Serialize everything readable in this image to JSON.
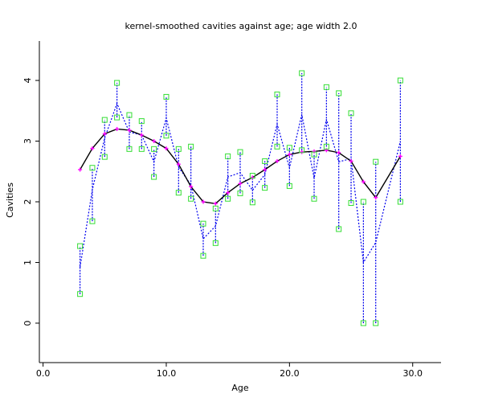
{
  "chart_data": {
    "type": "scatter",
    "title": "kernel-smoothed cavities against age; age width 2.0",
    "xlabel": "Age",
    "ylabel": "Cavities",
    "xlim": [
      -0.3,
      32.3
    ],
    "ylim": [
      -0.65,
      4.65
    ],
    "xticks": [
      {
        "value": 0,
        "label": "0.0"
      },
      {
        "value": 10,
        "label": "10.0"
      },
      {
        "value": 20,
        "label": "20.0"
      },
      {
        "value": 30,
        "label": "30.0"
      }
    ],
    "yticks": [
      {
        "value": 0,
        "label": "0"
      },
      {
        "value": 1,
        "label": "1"
      },
      {
        "value": 2,
        "label": "2"
      },
      {
        "value": 3,
        "label": "3"
      },
      {
        "value": 4,
        "label": "4"
      }
    ],
    "grid": false,
    "colors": {
      "points": "#33dd33",
      "smooth_line": "#000000",
      "smooth_points": "#ff00ff",
      "local_line": "#0000ee"
    },
    "series": [
      {
        "role": "observations",
        "points": [
          [
            3,
            0.48
          ],
          [
            3,
            1.27
          ],
          [
            4,
            1.68
          ],
          [
            4,
            2.56
          ],
          [
            5,
            2.74
          ],
          [
            5,
            3.35
          ],
          [
            6,
            3.39
          ],
          [
            6,
            3.96
          ],
          [
            7,
            2.87
          ],
          [
            7,
            3.43
          ],
          [
            8,
            2.87
          ],
          [
            8,
            3.33
          ],
          [
            9,
            2.41
          ],
          [
            9,
            2.87
          ],
          [
            10,
            3.09
          ],
          [
            10,
            3.73
          ],
          [
            11,
            2.15
          ],
          [
            11,
            2.87
          ],
          [
            12,
            2.05
          ],
          [
            12,
            2.91
          ],
          [
            13,
            1.11
          ],
          [
            13,
            1.64
          ],
          [
            14,
            1.32
          ],
          [
            14,
            1.89
          ],
          [
            15,
            2.05
          ],
          [
            15,
            2.75
          ],
          [
            16,
            2.14
          ],
          [
            16,
            2.82
          ],
          [
            17,
            1.99
          ],
          [
            17,
            2.43
          ],
          [
            18,
            2.23
          ],
          [
            18,
            2.67
          ],
          [
            19,
            2.91
          ],
          [
            19,
            3.77
          ],
          [
            20,
            2.26
          ],
          [
            20,
            2.89
          ],
          [
            21,
            2.85
          ],
          [
            21,
            4.12
          ],
          [
            22,
            2.05
          ],
          [
            22,
            2.78
          ],
          [
            23,
            2.91
          ],
          [
            23,
            3.89
          ],
          [
            24,
            1.55
          ],
          [
            24,
            3.79
          ],
          [
            25,
            1.98
          ],
          [
            25,
            3.46
          ],
          [
            26,
            0.0
          ],
          [
            26,
            2.0
          ],
          [
            27,
            0.0
          ],
          [
            27,
            2.66
          ],
          [
            29,
            2.0
          ],
          [
            29,
            4.0
          ]
        ]
      },
      {
        "role": "kernel-smooth",
        "points": [
          [
            3,
            2.53
          ],
          [
            4,
            2.88
          ],
          [
            5,
            3.12
          ],
          [
            6,
            3.2
          ],
          [
            7,
            3.18
          ],
          [
            8,
            3.1
          ],
          [
            9,
            3.0
          ],
          [
            10,
            2.88
          ],
          [
            11,
            2.62
          ],
          [
            12,
            2.25
          ],
          [
            13,
            2.0
          ],
          [
            14,
            1.97
          ],
          [
            15,
            2.15
          ],
          [
            16,
            2.3
          ],
          [
            17,
            2.4
          ],
          [
            18,
            2.53
          ],
          [
            19,
            2.67
          ],
          [
            20,
            2.78
          ],
          [
            21,
            2.82
          ],
          [
            22,
            2.83
          ],
          [
            23,
            2.85
          ],
          [
            24,
            2.81
          ],
          [
            25,
            2.67
          ],
          [
            26,
            2.33
          ],
          [
            27,
            2.07
          ],
          [
            29,
            2.75
          ]
        ]
      },
      {
        "role": "local-fit",
        "points": [
          [
            3,
            0.92
          ],
          [
            4,
            2.2
          ],
          [
            5,
            3.05
          ],
          [
            6,
            3.62
          ],
          [
            7,
            3.15
          ],
          [
            8,
            3.1
          ],
          [
            9,
            2.66
          ],
          [
            10,
            3.38
          ],
          [
            11,
            2.57
          ],
          [
            12,
            2.28
          ],
          [
            13,
            1.39
          ],
          [
            14,
            1.6
          ],
          [
            15,
            2.41
          ],
          [
            16,
            2.48
          ],
          [
            17,
            2.19
          ],
          [
            18,
            2.45
          ],
          [
            19,
            3.28
          ],
          [
            20,
            2.56
          ],
          [
            21,
            3.44
          ],
          [
            22,
            2.39
          ],
          [
            23,
            3.36
          ],
          [
            24,
            2.66
          ],
          [
            25,
            2.71
          ],
          [
            26,
            1.0
          ],
          [
            27,
            1.33
          ],
          [
            29,
            3.0
          ]
        ]
      }
    ]
  }
}
